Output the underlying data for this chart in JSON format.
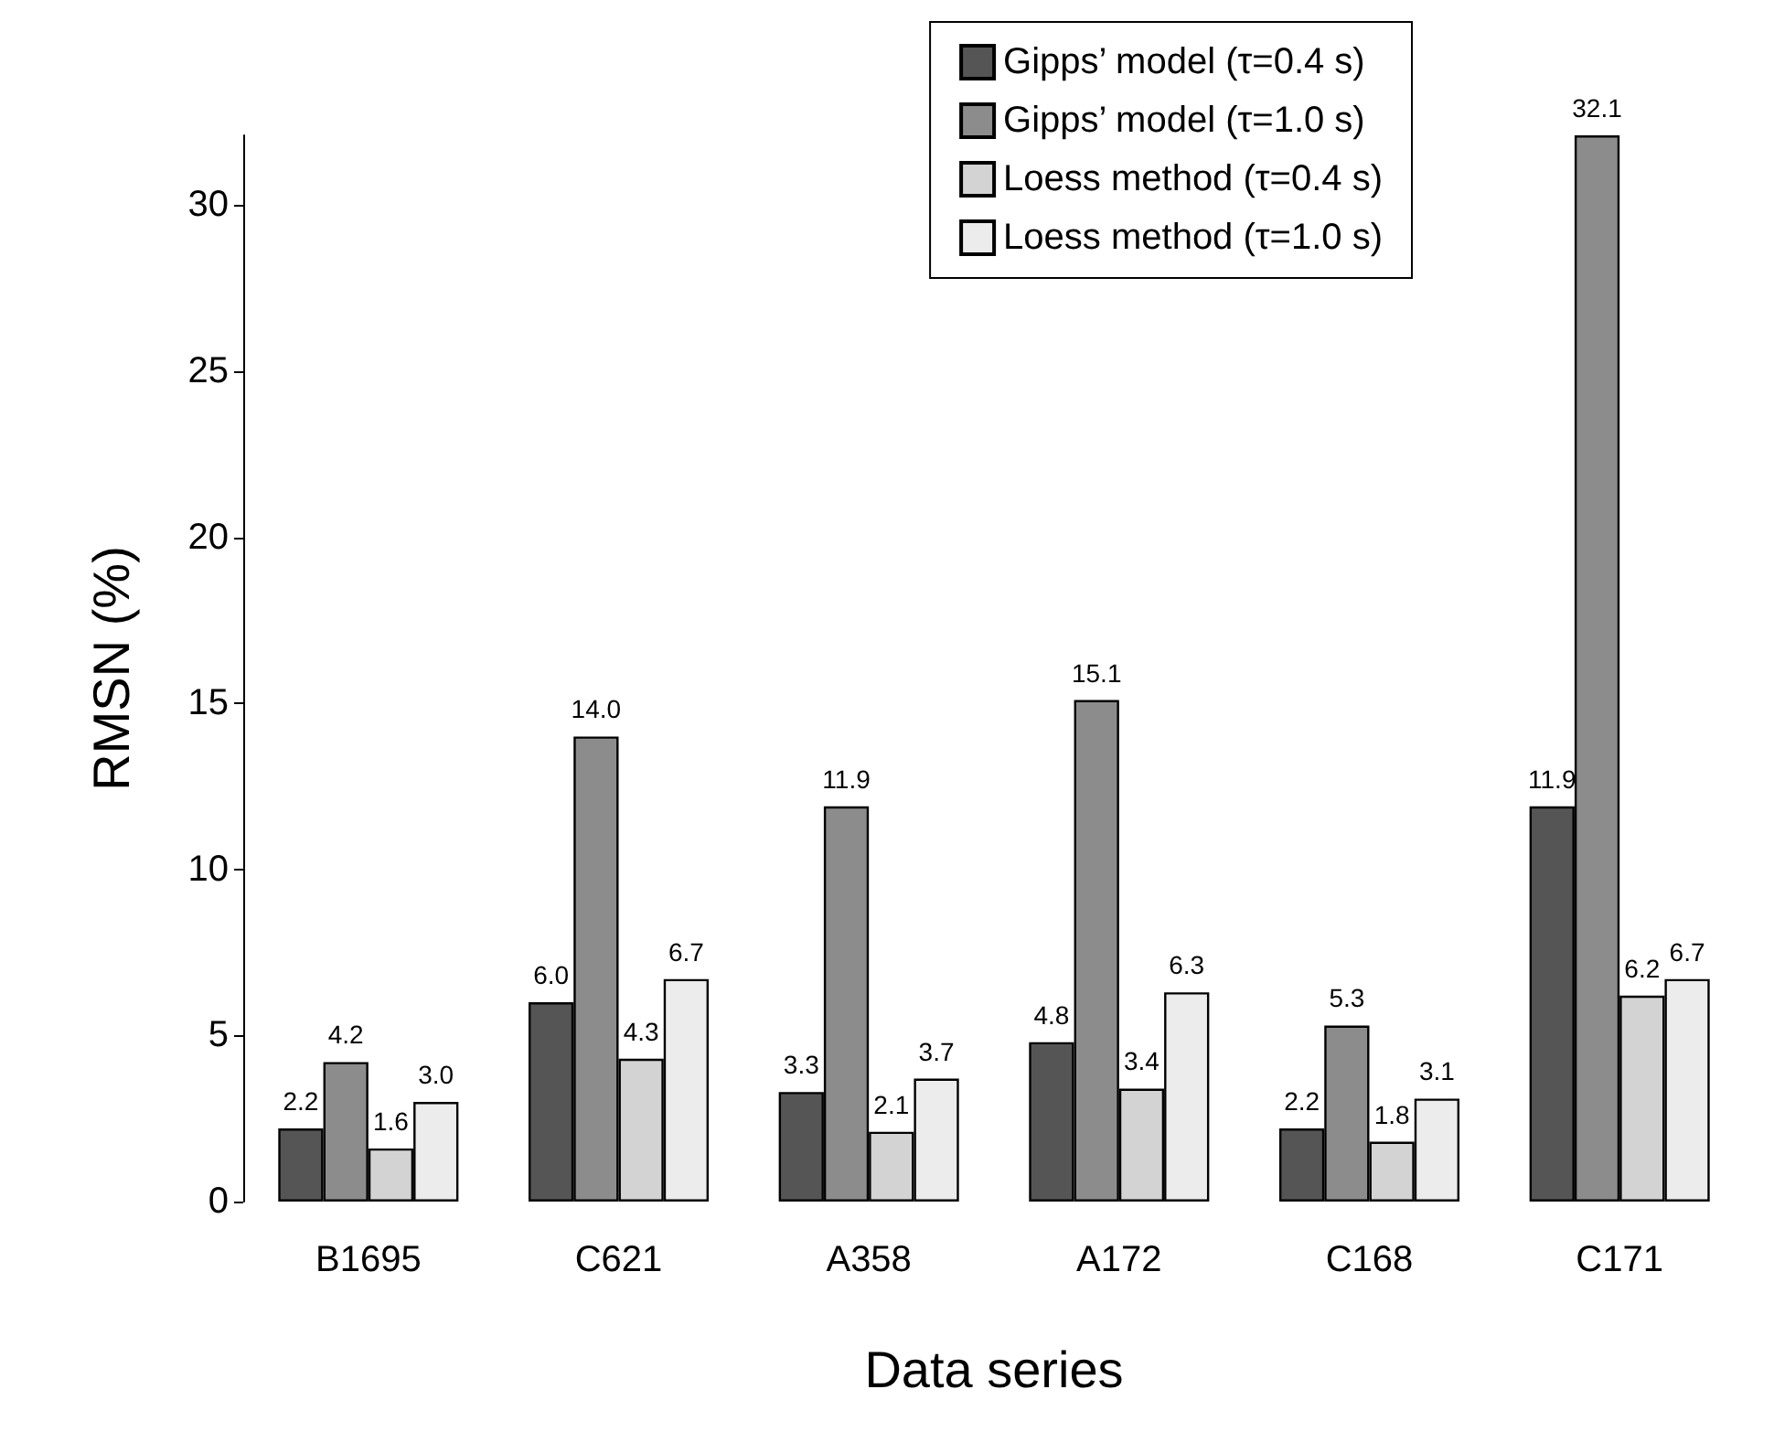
{
  "chart_data": {
    "type": "bar",
    "xlabel": "Data series",
    "ylabel": "RMSN (%)",
    "categories": [
      "B1695",
      "C621",
      "A358",
      "A172",
      "C168",
      "C171"
    ],
    "series": [
      {
        "name": "Gipps’ model (τ=0.4 s)",
        "color": "#555555",
        "values": [
          2.2,
          6.0,
          3.3,
          4.8,
          2.2,
          11.9
        ],
        "value_labels": [
          "2.2",
          "6.0",
          "3.3",
          "4.8",
          "2.2",
          "11.9"
        ]
      },
      {
        "name": "Gipps’ model (τ=1.0 s)",
        "color": "#8c8c8c",
        "values": [
          4.2,
          14.0,
          11.9,
          15.1,
          5.3,
          32.1
        ],
        "value_labels": [
          "4.2",
          "14.0",
          "11.9",
          "15.1",
          "5.3",
          "32.1"
        ]
      },
      {
        "name": "Loess method (τ=0.4 s)",
        "color": "#d3d3d3",
        "values": [
          1.6,
          4.3,
          2.1,
          3.4,
          1.8,
          6.2
        ],
        "value_labels": [
          "1.6",
          "4.3",
          "2.1",
          "3.4",
          "1.8",
          "6.2"
        ]
      },
      {
        "name": "Loess method (τ=1.0 s)",
        "color": "#ececec",
        "values": [
          3.0,
          6.7,
          3.7,
          6.3,
          3.1,
          6.7
        ],
        "value_labels": [
          "3.0",
          "6.7",
          "3.7",
          "6.3",
          "3.1",
          "6.7"
        ]
      }
    ],
    "ylim": [
      0,
      32.1
    ],
    "yticks": [
      0,
      5,
      10,
      15,
      20,
      25,
      30
    ],
    "grid": false,
    "legend": "top right"
  }
}
